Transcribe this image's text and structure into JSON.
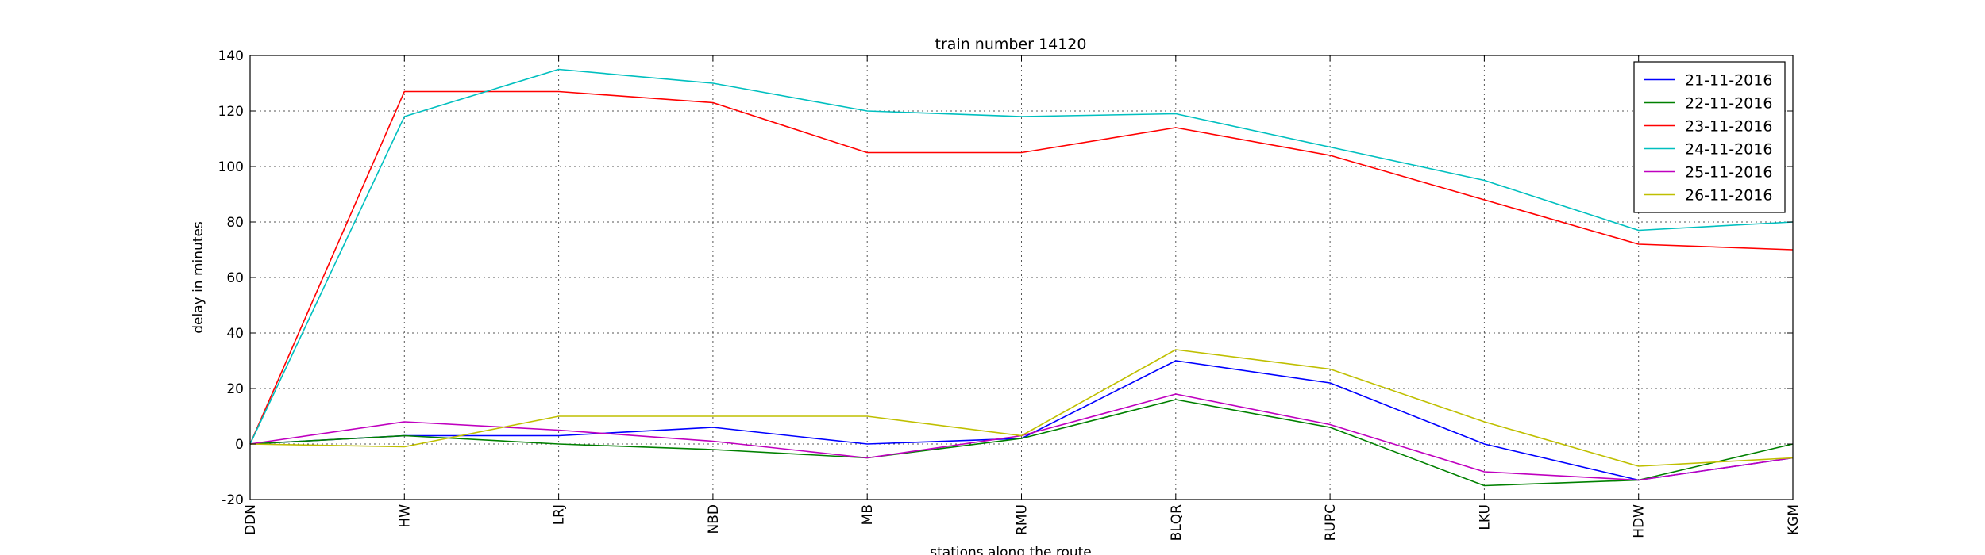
{
  "chart_data": {
    "type": "line",
    "title": "train number 14120",
    "xlabel": "stations along the route",
    "ylabel": "delay in minutes",
    "categories": [
      "DDN",
      "HW",
      "LRJ",
      "NBD",
      "MB",
      "RMU",
      "BLQR",
      "RUPC",
      "LKU",
      "HDW",
      "KGM"
    ],
    "ylim": [
      -20,
      140
    ],
    "yticks": [
      -20,
      0,
      20,
      40,
      60,
      80,
      100,
      120,
      140
    ],
    "grid": true,
    "legend_position": "top-right",
    "series": [
      {
        "name": "21-11-2016",
        "color": "#0000ff",
        "values": [
          0,
          3,
          3,
          6,
          0,
          2,
          30,
          22,
          0,
          -13,
          -5
        ]
      },
      {
        "name": "22-11-2016",
        "color": "#008000",
        "values": [
          0,
          3,
          0,
          -2,
          -5,
          2,
          16,
          6,
          -15,
          -13,
          0
        ]
      },
      {
        "name": "23-11-2016",
        "color": "#ff0000",
        "values": [
          0,
          127,
          127,
          123,
          105,
          105,
          114,
          104,
          88,
          72,
          70
        ]
      },
      {
        "name": "24-11-2016",
        "color": "#00bfbf",
        "values": [
          0,
          118,
          135,
          130,
          120,
          118,
          119,
          107,
          95,
          77,
          80
        ]
      },
      {
        "name": "25-11-2016",
        "color": "#bf00bf",
        "values": [
          0,
          8,
          5,
          1,
          -5,
          3,
          18,
          7,
          -10,
          -13,
          -5
        ]
      },
      {
        "name": "26-11-2016",
        "color": "#bfbf00",
        "values": [
          0,
          -1,
          10,
          10,
          10,
          3,
          34,
          27,
          8,
          -8,
          -5
        ]
      }
    ]
  }
}
